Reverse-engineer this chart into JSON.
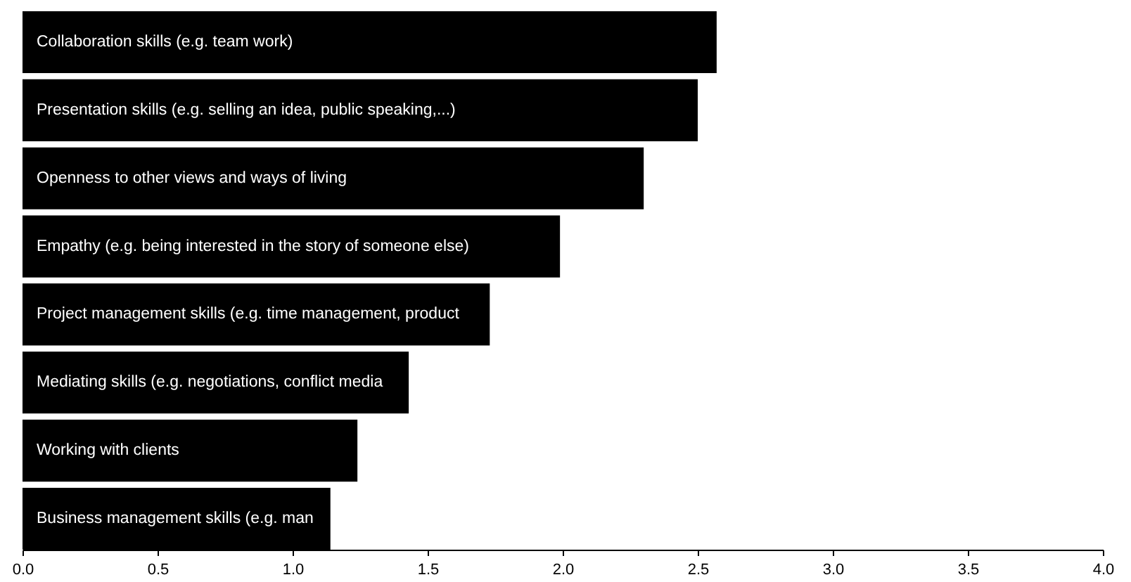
{
  "chart_data": {
    "type": "bar",
    "orientation": "horizontal",
    "categories": [
      "Collaboration skills (e.g. team work)",
      "Presentation skills (e.g. selling an idea, public speaking,...)",
      "Openness to other views and ways of living",
      "Empathy (e.g. being interested in the story of someone else)",
      "Project management skills (e.g. time management, product",
      "Mediating skills (e.g. negotiations, conflict media",
      "Working with clients",
      "Business management skills (e.g. man"
    ],
    "values": [
      2.57,
      2.5,
      2.3,
      1.99,
      1.73,
      1.43,
      1.24,
      1.14
    ],
    "color": "#000000",
    "xlim": [
      0,
      4
    ],
    "xticks": [
      {
        "value": 0,
        "label": "0.0"
      },
      {
        "value": 0.5,
        "label": "0.5"
      },
      {
        "value": 1,
        "label": "1.0"
      },
      {
        "value": 1.5,
        "label": "1.5"
      },
      {
        "value": 2,
        "label": "2.0"
      },
      {
        "value": 2.5,
        "label": "2.5"
      },
      {
        "value": 3,
        "label": "3.0"
      },
      {
        "value": 3.5,
        "label": "3.5"
      },
      {
        "value": 4,
        "label": "4.0"
      }
    ],
    "tick_labels": "x",
    "grid": false
  }
}
